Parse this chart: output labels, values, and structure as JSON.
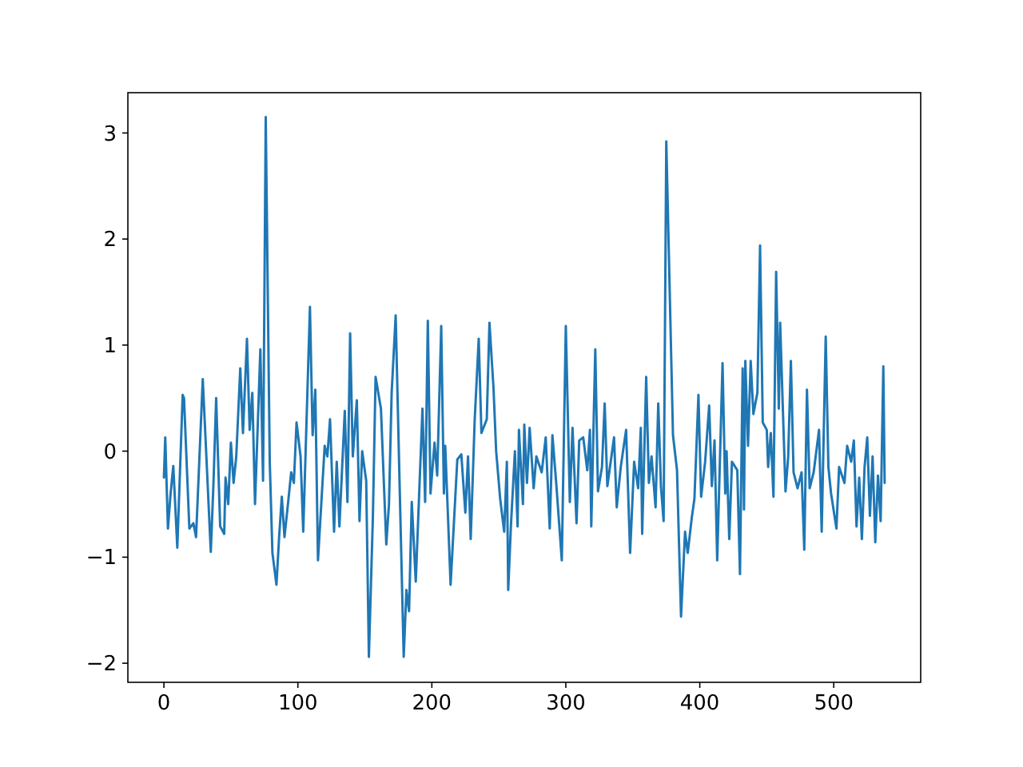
{
  "chart_data": {
    "type": "line",
    "xlim": [
      -26.9,
      564.9
    ],
    "ylim": [
      -2.18,
      3.38
    ],
    "xticks": [
      0,
      100,
      200,
      300,
      400,
      500
    ],
    "yticks": [
      -2,
      -1,
      0,
      1,
      2,
      3
    ],
    "marker": "none",
    "line_style": "solid",
    "series": [
      {
        "color": "#1f77b4",
        "x": [
          0,
          1,
          3,
          5,
          7,
          10,
          14,
          15,
          19,
          22,
          24,
          29,
          35,
          37,
          39,
          42,
          45,
          46,
          48,
          50,
          52,
          54,
          57,
          59,
          62,
          64,
          66,
          68,
          72,
          74,
          76,
          79,
          81,
          84,
          86,
          88,
          90,
          93,
          95,
          97,
          99,
          102,
          104,
          109,
          111,
          113,
          115,
          120,
          122,
          124,
          127,
          129,
          131,
          135,
          137,
          139,
          141,
          144,
          146,
          148,
          151,
          153,
          156,
          158,
          162,
          166,
          168,
          170,
          173,
          176,
          179,
          181,
          183,
          185,
          188,
          193,
          195,
          197,
          199,
          202,
          204,
          207,
          209,
          210,
          214,
          219,
          222,
          225,
          227,
          229,
          232,
          235,
          237,
          241,
          243,
          246,
          248,
          251,
          254,
          256,
          257,
          259,
          262,
          264,
          265,
          268,
          269,
          271,
          273,
          276,
          278,
          282,
          285,
          288,
          290,
          293,
          297,
          300,
          303,
          305,
          308,
          310,
          313,
          316,
          318,
          319,
          322,
          324,
          327,
          329,
          331,
          336,
          338,
          341,
          345,
          348,
          351,
          354,
          356,
          357,
          360,
          362,
          364,
          367,
          369,
          371,
          373,
          375,
          380,
          383,
          386,
          389,
          391,
          394,
          396,
          399,
          401,
          404,
          407,
          409,
          411,
          413,
          415,
          417,
          419,
          420,
          422,
          424,
          428,
          430,
          432,
          433,
          434,
          436,
          438,
          440,
          443,
          445,
          447,
          450,
          451,
          453,
          455,
          457,
          459,
          460,
          462,
          464,
          466,
          468,
          470,
          473,
          476,
          478,
          480,
          482,
          485,
          489,
          491,
          494,
          496,
          498,
          502,
          504,
          508,
          510,
          513,
          515,
          517,
          519,
          521,
          523,
          525,
          527,
          529,
          531,
          533,
          535,
          537,
          538
        ],
        "values": [
          -0.25,
          0.13,
          -0.73,
          -0.4,
          -0.14,
          -0.91,
          0.53,
          0.5,
          -0.73,
          -0.68,
          -0.81,
          0.68,
          -0.95,
          -0.3,
          0.5,
          -0.71,
          -0.78,
          -0.25,
          -0.5,
          0.08,
          -0.3,
          -0.05,
          0.78,
          0.17,
          1.06,
          0.2,
          0.55,
          -0.5,
          0.96,
          -0.28,
          3.15,
          -0.1,
          -0.96,
          -1.26,
          -0.81,
          -0.43,
          -0.81,
          -0.45,
          -0.2,
          -0.3,
          0.27,
          -0.05,
          -0.76,
          1.36,
          0.15,
          0.58,
          -1.03,
          0.05,
          -0.05,
          0.3,
          -0.76,
          -0.1,
          -0.71,
          0.38,
          -0.48,
          1.11,
          -0.05,
          0.48,
          -0.66,
          0.0,
          -0.28,
          -1.94,
          -0.61,
          0.7,
          0.4,
          -0.88,
          -0.5,
          0.55,
          1.28,
          -0.35,
          -1.94,
          -1.31,
          -1.51,
          -0.48,
          -1.23,
          0.4,
          -0.48,
          1.23,
          -0.4,
          0.08,
          -0.23,
          1.18,
          -0.4,
          0.05,
          -1.26,
          -0.08,
          -0.03,
          -0.58,
          -0.05,
          -0.83,
          0.3,
          1.06,
          0.17,
          0.3,
          1.21,
          0.6,
          0.0,
          -0.45,
          -0.76,
          -0.1,
          -1.31,
          -0.71,
          0.0,
          -0.71,
          0.2,
          -0.5,
          0.25,
          -0.3,
          0.22,
          -0.35,
          -0.05,
          -0.2,
          0.13,
          -0.73,
          0.15,
          -0.33,
          -1.03,
          1.18,
          -0.48,
          0.22,
          -0.68,
          0.1,
          0.13,
          -0.18,
          0.2,
          -0.71,
          0.96,
          -0.38,
          -0.15,
          0.45,
          -0.33,
          0.13,
          -0.53,
          -0.15,
          0.2,
          -0.96,
          -0.1,
          -0.35,
          0.22,
          -0.78,
          0.7,
          -0.3,
          -0.05,
          -0.53,
          0.45,
          -0.33,
          -0.66,
          2.92,
          0.15,
          -0.18,
          -1.56,
          -0.76,
          -0.96,
          -0.63,
          -0.45,
          0.53,
          -0.43,
          -0.1,
          0.43,
          -0.33,
          0.1,
          -1.03,
          -0.1,
          0.83,
          -0.4,
          0.0,
          -0.83,
          -0.1,
          -0.18,
          -1.16,
          0.78,
          -0.55,
          0.85,
          0.05,
          0.85,
          0.35,
          0.55,
          1.94,
          0.27,
          0.2,
          -0.15,
          0.17,
          -0.43,
          1.69,
          0.4,
          1.21,
          0.4,
          -0.38,
          -0.05,
          0.85,
          -0.2,
          -0.35,
          -0.2,
          -0.93,
          0.58,
          -0.35,
          -0.2,
          0.2,
          -0.76,
          1.08,
          -0.15,
          -0.4,
          -0.73,
          -0.15,
          -0.3,
          0.05,
          -0.1,
          0.1,
          -0.71,
          -0.25,
          -0.83,
          -0.15,
          0.13,
          -0.61,
          -0.05,
          -0.86,
          -0.23,
          -0.66,
          0.8,
          -0.3
        ]
      }
    ]
  }
}
